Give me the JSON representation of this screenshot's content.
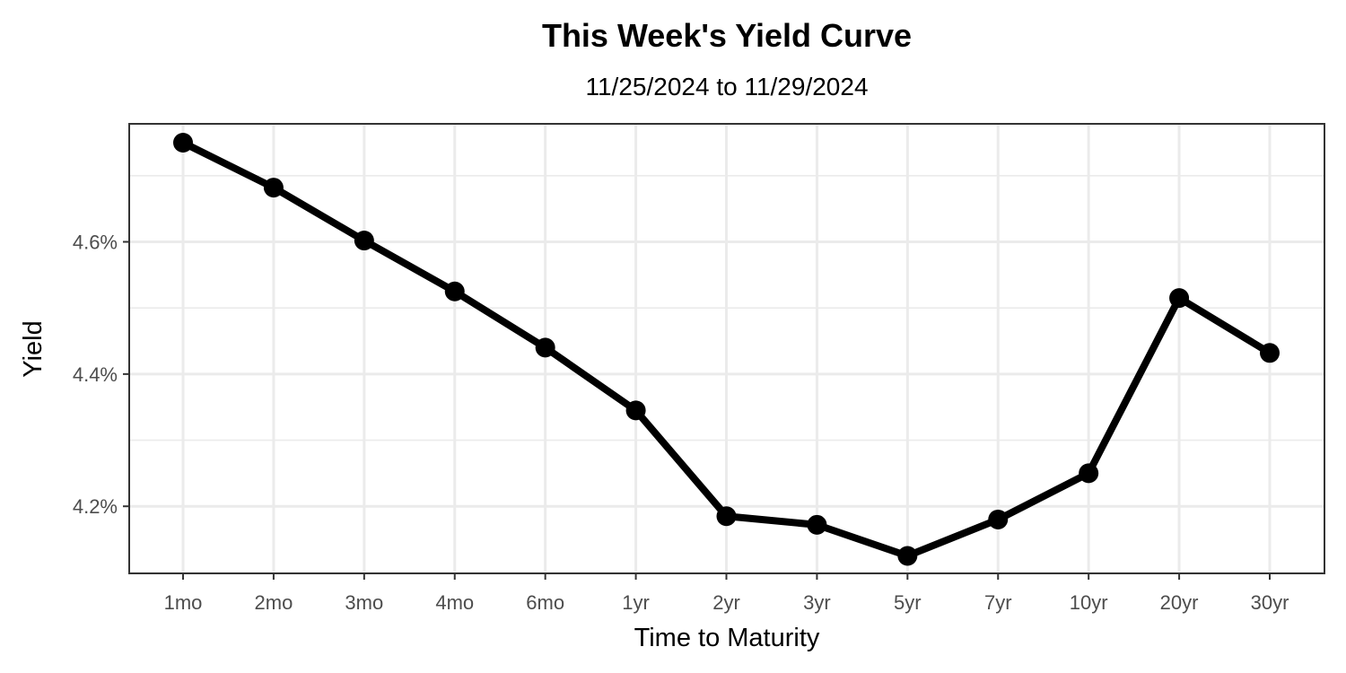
{
  "chart_data": {
    "type": "line",
    "title": "This Week's Yield Curve",
    "subtitle": "11/25/2024 to 11/29/2024",
    "xlabel": "Time to Maturity",
    "ylabel": "Yield",
    "categories": [
      "1mo",
      "2mo",
      "3mo",
      "4mo",
      "6mo",
      "1yr",
      "2yr",
      "3yr",
      "5yr",
      "7yr",
      "10yr",
      "20yr",
      "30yr"
    ],
    "series": [
      {
        "values": [
          4.75,
          4.682,
          4.602,
          4.525,
          4.44,
          4.345,
          4.185,
          4.172,
          4.125,
          4.18,
          4.25,
          4.515,
          4.432
        ]
      }
    ],
    "ylim": [
      4.0985,
      4.7785
    ],
    "y_ticks": [
      4.2,
      4.4,
      4.6
    ],
    "y_tick_labels": [
      "4.2%",
      "4.4%",
      "4.6%"
    ],
    "y_minor_ticks": [
      4.1,
      4.3,
      4.5,
      4.7
    ],
    "grid": true,
    "legend": "none",
    "colors": {
      "line": "#000000",
      "points": "#000000",
      "grid": "#ebebeb",
      "panel_border": "#333333",
      "tick_text": "#4d4d4d"
    }
  }
}
